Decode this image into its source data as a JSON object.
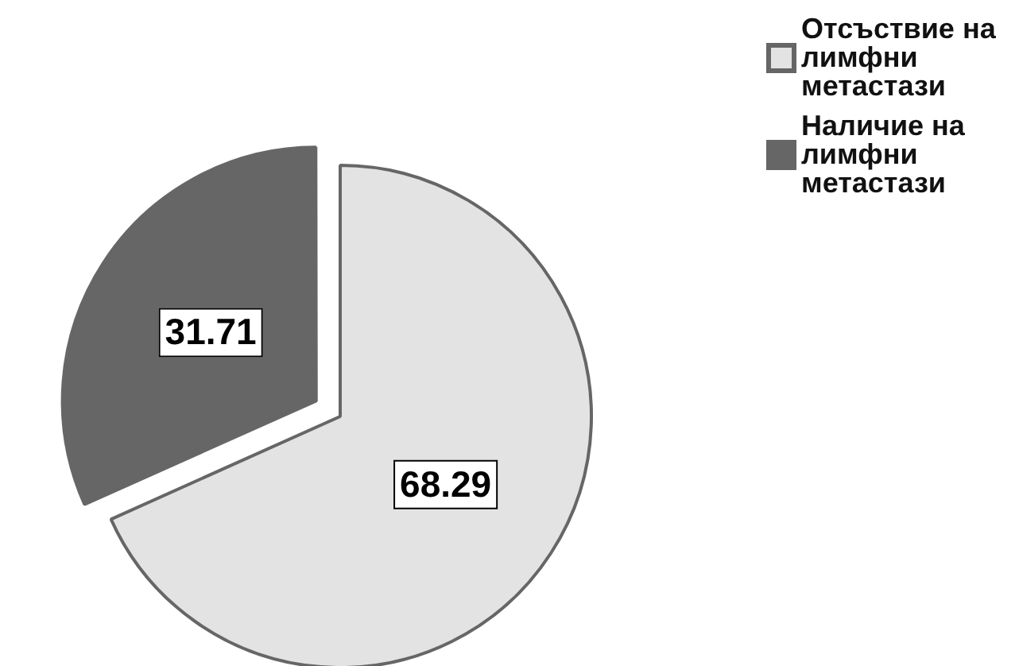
{
  "chart_data": {
    "type": "pie",
    "categories": [
      "Отсъствие на лимфни метастази",
      "Наличие на лимфни метастази"
    ],
    "values": [
      68.29,
      31.71
    ],
    "colors": [
      "#e3e3e3",
      "#666666"
    ],
    "data_labels": true,
    "legend": "top right"
  }
}
